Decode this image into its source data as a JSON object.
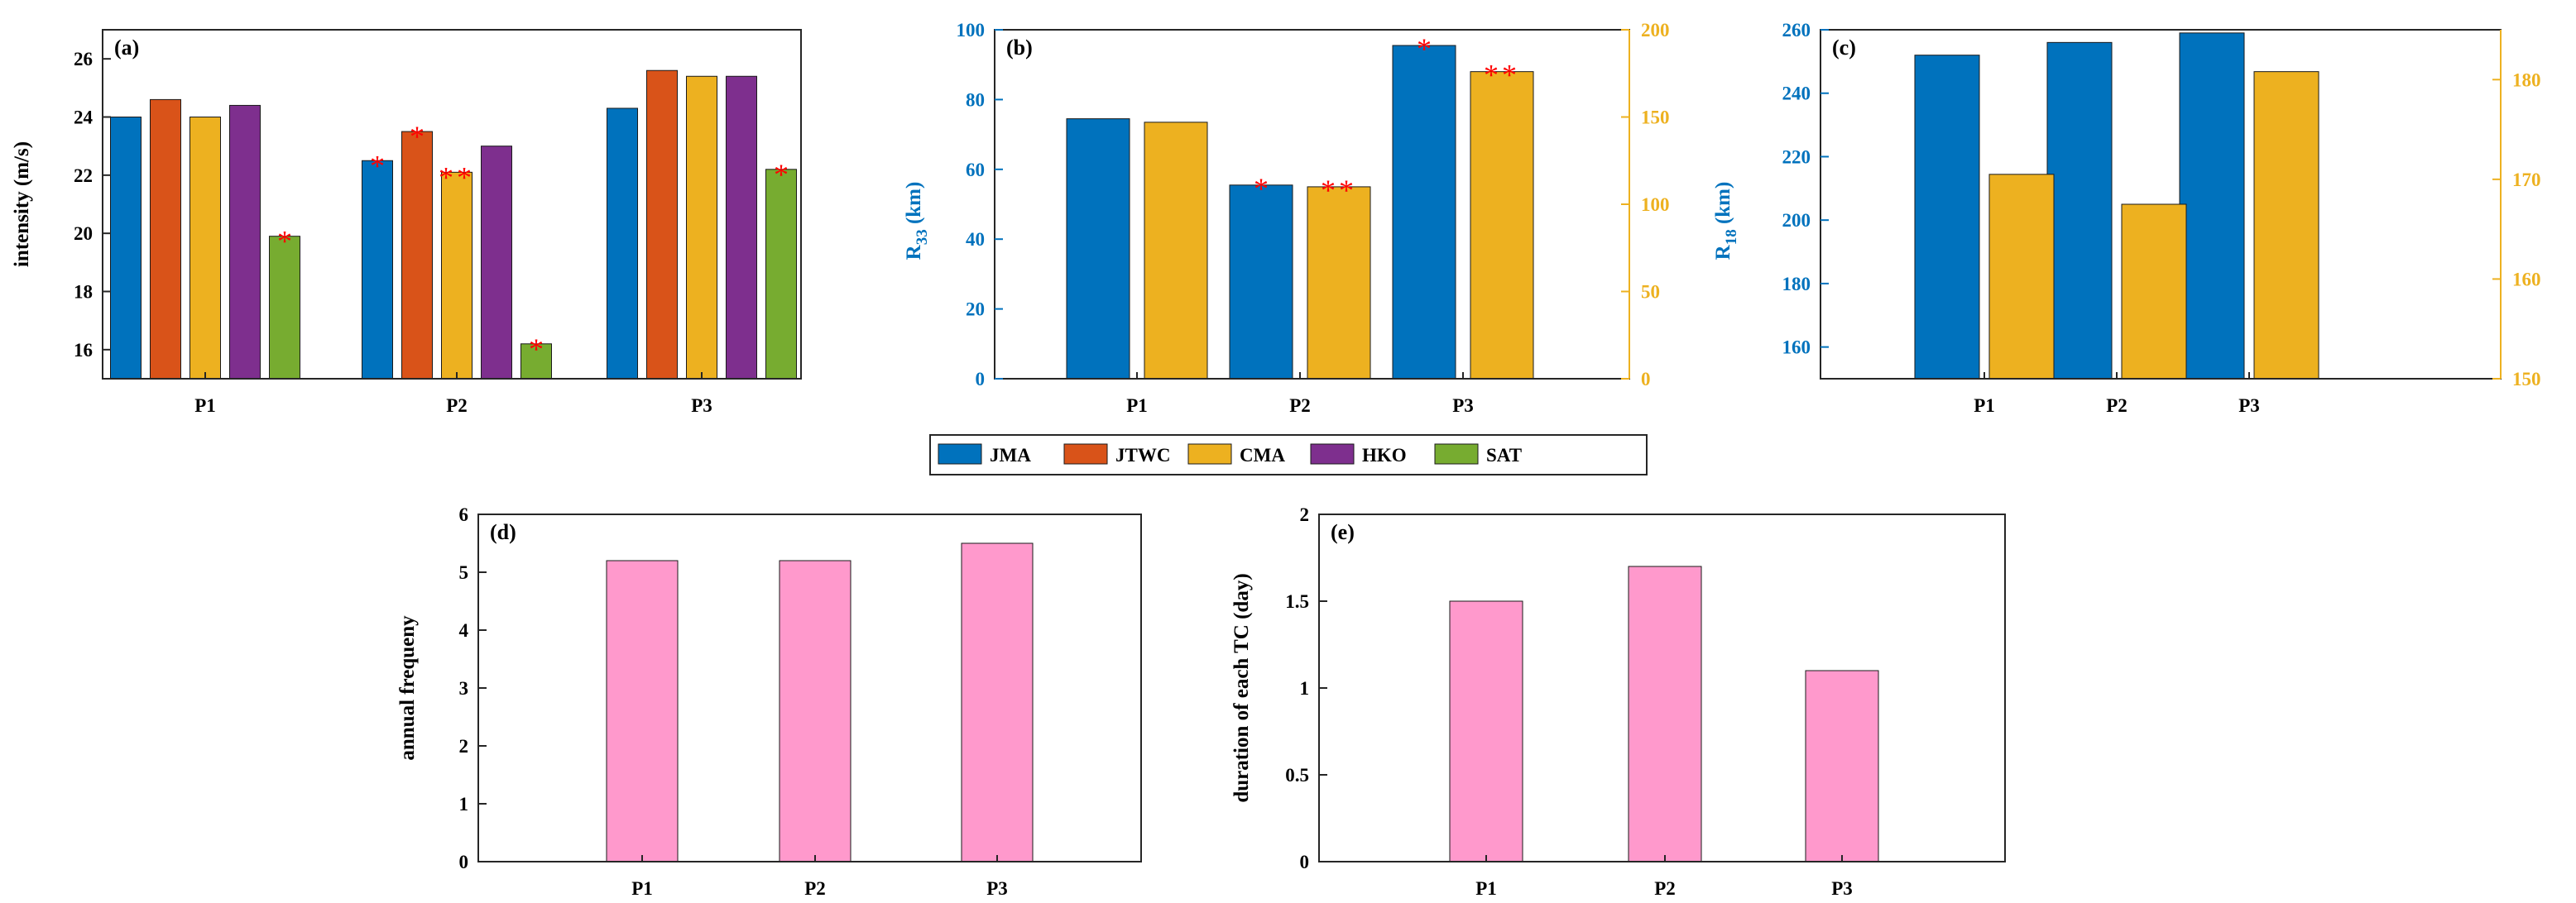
{
  "colors": {
    "JMA": "#0072bd",
    "JTWC": "#d95319",
    "CMA": "#edb120",
    "HKO": "#7e2f8e",
    "SAT": "#77ac30",
    "pink": "#ff99cc",
    "star": "#ff0000",
    "rightAxisYellow": "#edb120",
    "leftAxisBlue": "#0072bd"
  },
  "legend": {
    "placement": "bottom-center",
    "entries": [
      "JMA",
      "JTWC",
      "CMA",
      "HKO",
      "SAT"
    ]
  },
  "chart_data": [
    {
      "panel": "(a)",
      "type": "bar",
      "categories": [
        "P1",
        "P2",
        "P3"
      ],
      "ylabel": "intensity (m/s)",
      "ylim": [
        15,
        27
      ],
      "yticks": [
        16,
        18,
        20,
        22,
        24,
        26
      ],
      "grid": false,
      "series": [
        {
          "name": "JMA",
          "values": [
            24.0,
            22.5,
            24.3
          ],
          "stars": [
            "",
            "*",
            ""
          ]
        },
        {
          "name": "JTWC",
          "values": [
            24.6,
            23.5,
            25.6
          ],
          "stars": [
            "",
            "*",
            ""
          ]
        },
        {
          "name": "CMA",
          "values": [
            24.0,
            22.1,
            25.4
          ],
          "stars": [
            "",
            "**",
            ""
          ]
        },
        {
          "name": "HKO",
          "values": [
            24.4,
            23.0,
            25.4
          ],
          "stars": [
            "",
            "",
            ""
          ]
        },
        {
          "name": "SAT",
          "values": [
            19.9,
            16.2,
            22.2
          ],
          "stars": [
            "*",
            "*",
            "*"
          ]
        }
      ]
    },
    {
      "panel": "(b)",
      "type": "bar",
      "categories": [
        "P1",
        "P2",
        "P3"
      ],
      "ylabel": "R33 (km)",
      "ylim": [
        0,
        100
      ],
      "yticks": [
        0,
        20,
        40,
        60,
        80,
        100
      ],
      "ylim_right": [
        0,
        200
      ],
      "yticks_right": [
        0,
        50,
        100,
        150,
        200
      ],
      "grid": false,
      "series": [
        {
          "name": "JMA",
          "axis": "left",
          "values": [
            74.5,
            55.5,
            95.5
          ],
          "stars": [
            "",
            "*",
            "*"
          ]
        },
        {
          "name": "CMA",
          "axis": "right",
          "values": [
            147,
            110,
            176
          ],
          "stars": [
            "",
            "**",
            "**"
          ]
        }
      ]
    },
    {
      "panel": "(c)",
      "type": "bar",
      "categories": [
        "P1",
        "P2",
        "P3"
      ],
      "ylabel": "R18 (km)",
      "ylim": [
        150,
        260
      ],
      "yticks": [
        160,
        180,
        200,
        220,
        240,
        260
      ],
      "ylim_right": [
        150,
        185
      ],
      "yticks_right": [
        150,
        160,
        170,
        180
      ],
      "grid": false,
      "series": [
        {
          "name": "JMA",
          "axis": "left",
          "values": [
            252,
            256,
            259
          ]
        },
        {
          "name": "CMA",
          "axis": "right",
          "values": [
            170.5,
            167.5,
            180.8
          ]
        }
      ]
    },
    {
      "panel": "(d)",
      "type": "bar",
      "categories": [
        "P1",
        "P2",
        "P3"
      ],
      "ylabel": "annual frequeny",
      "ylim": [
        0,
        6
      ],
      "yticks": [
        0,
        1,
        2,
        3,
        4,
        5,
        6
      ],
      "grid": false,
      "series": [
        {
          "values": [
            5.2,
            5.2,
            5.5
          ]
        }
      ]
    },
    {
      "panel": "(e)",
      "type": "bar",
      "categories": [
        "P1",
        "P2",
        "P3"
      ],
      "ylabel": "duration of each TC (day)",
      "ylim": [
        0,
        2
      ],
      "yticks": [
        0,
        0.5,
        1,
        1.5,
        2
      ],
      "grid": false,
      "series": [
        {
          "values": [
            1.5,
            1.7,
            1.1
          ]
        }
      ]
    }
  ]
}
